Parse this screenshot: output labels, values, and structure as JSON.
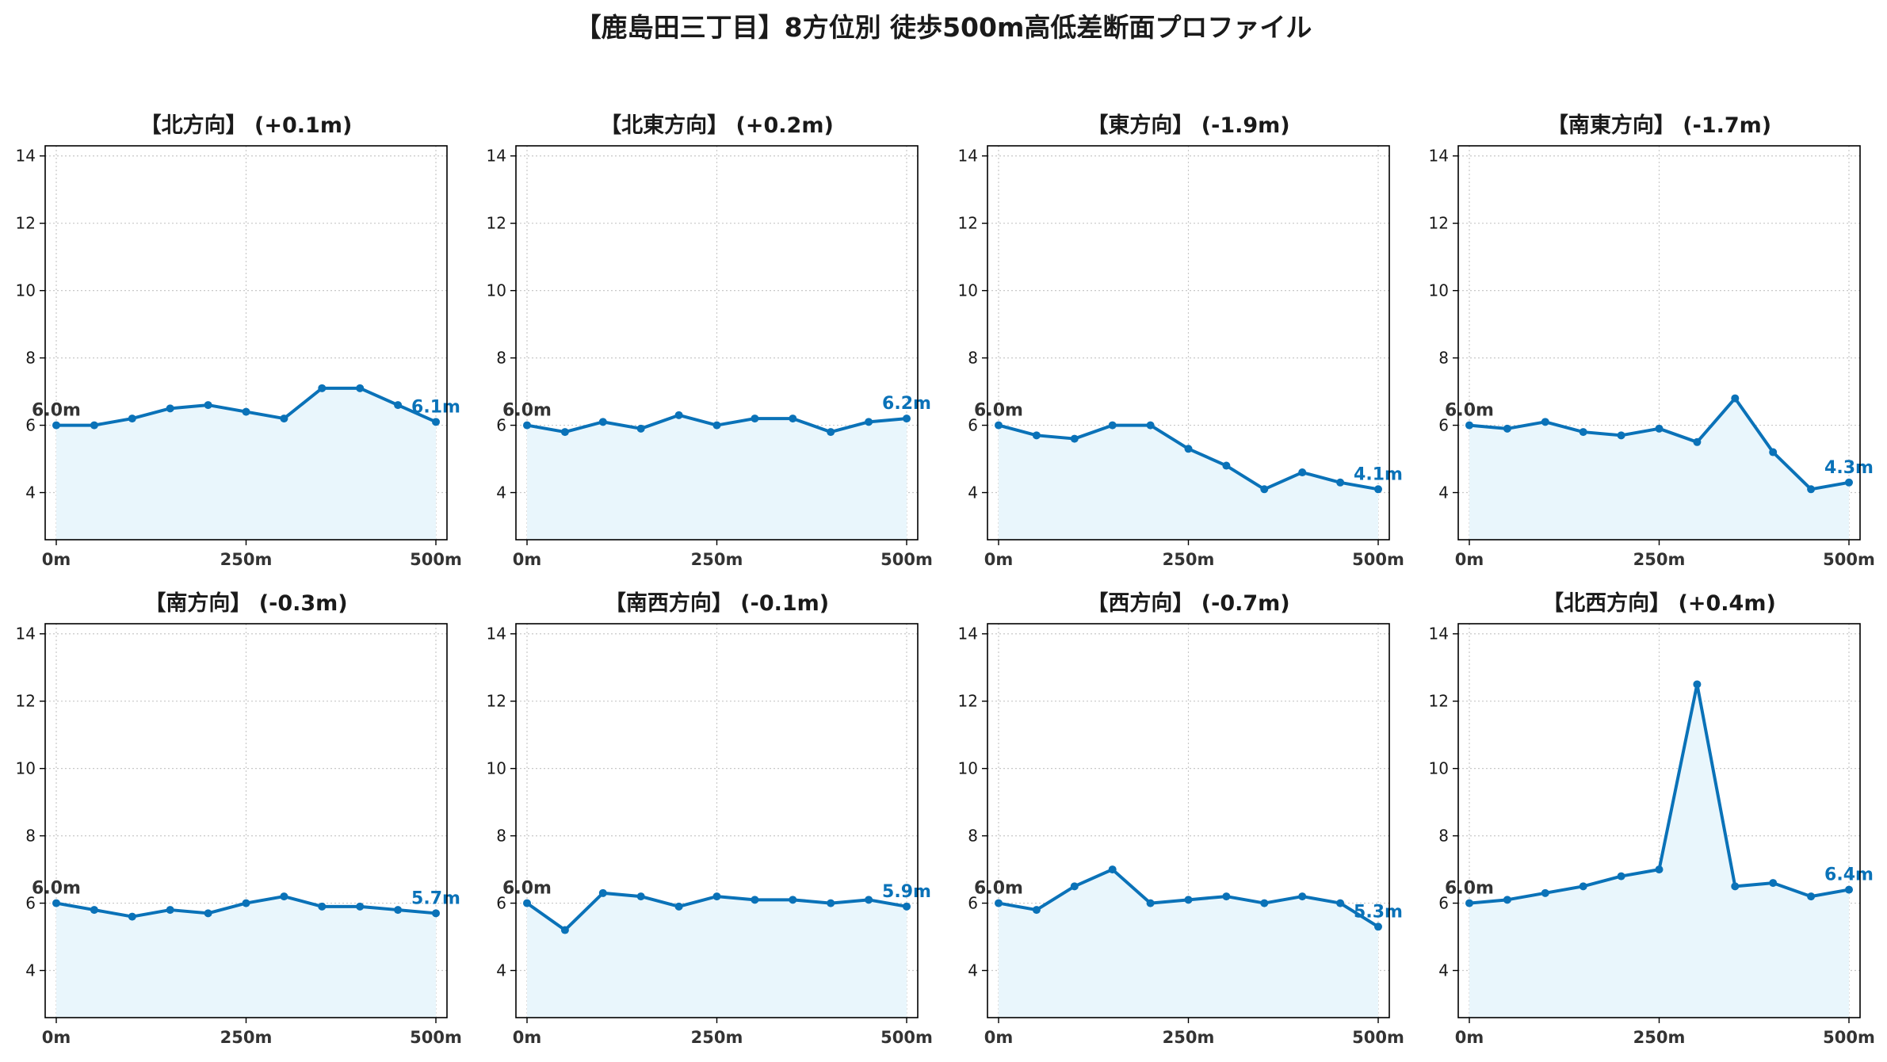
{
  "title": "【鹿島田三丁目】8方位別 徒歩500m高低差断面プロファイル",
  "colors": {
    "line": "#0a72b8",
    "fill": "#e9f6fc",
    "start_label": "#333333",
    "end_label": "#0a72b8",
    "grid": "#c8c8c8",
    "axis": "#000000"
  },
  "chart_data": [
    {
      "type": "line",
      "title": "【北方向】 (+0.1m)",
      "x": [
        0,
        50,
        100,
        150,
        200,
        250,
        300,
        350,
        400,
        450,
        500
      ],
      "y": [
        6.0,
        6.0,
        6.2,
        6.5,
        6.6,
        6.4,
        6.2,
        7.1,
        7.1,
        6.6,
        6.1
      ],
      "start_label": "6.0m",
      "end_label": "6.1m",
      "ylim": [
        2.6,
        14.3
      ],
      "yticks": [
        4,
        6,
        8,
        10,
        12,
        14
      ],
      "xticks": [
        0,
        250,
        500
      ],
      "xticklabels": [
        "0m",
        "250m",
        "500m"
      ],
      "grid": true
    },
    {
      "type": "line",
      "title": "【北東方向】 (+0.2m)",
      "x": [
        0,
        50,
        100,
        150,
        200,
        250,
        300,
        350,
        400,
        450,
        500
      ],
      "y": [
        6.0,
        5.8,
        6.1,
        5.9,
        6.3,
        6.0,
        6.2,
        6.2,
        5.8,
        6.1,
        6.2
      ],
      "start_label": "6.0m",
      "end_label": "6.2m",
      "ylim": [
        2.6,
        14.3
      ],
      "yticks": [
        4,
        6,
        8,
        10,
        12,
        14
      ],
      "xticks": [
        0,
        250,
        500
      ],
      "xticklabels": [
        "0m",
        "250m",
        "500m"
      ],
      "grid": true
    },
    {
      "type": "line",
      "title": "【東方向】 (-1.9m)",
      "x": [
        0,
        50,
        100,
        150,
        200,
        250,
        300,
        350,
        400,
        450,
        500
      ],
      "y": [
        6.0,
        5.7,
        5.6,
        6.0,
        6.0,
        5.3,
        4.8,
        4.1,
        4.6,
        4.3,
        4.1
      ],
      "start_label": "6.0m",
      "end_label": "4.1m",
      "ylim": [
        2.6,
        14.3
      ],
      "yticks": [
        4,
        6,
        8,
        10,
        12,
        14
      ],
      "xticks": [
        0,
        250,
        500
      ],
      "xticklabels": [
        "0m",
        "250m",
        "500m"
      ],
      "grid": true
    },
    {
      "type": "line",
      "title": "【南東方向】 (-1.7m)",
      "x": [
        0,
        50,
        100,
        150,
        200,
        250,
        300,
        350,
        400,
        450,
        500
      ],
      "y": [
        6.0,
        5.9,
        6.1,
        5.8,
        5.7,
        5.9,
        5.5,
        6.8,
        5.2,
        4.1,
        4.3
      ],
      "start_label": "6.0m",
      "end_label": "4.3m",
      "ylim": [
        2.6,
        14.3
      ],
      "yticks": [
        4,
        6,
        8,
        10,
        12,
        14
      ],
      "xticks": [
        0,
        250,
        500
      ],
      "xticklabels": [
        "0m",
        "250m",
        "500m"
      ],
      "grid": true
    },
    {
      "type": "line",
      "title": "【南方向】 (-0.3m)",
      "x": [
        0,
        50,
        100,
        150,
        200,
        250,
        300,
        350,
        400,
        450,
        500
      ],
      "y": [
        6.0,
        5.8,
        5.6,
        5.8,
        5.7,
        6.0,
        6.2,
        5.9,
        5.9,
        5.8,
        5.7
      ],
      "start_label": "6.0m",
      "end_label": "5.7m",
      "ylim": [
        2.6,
        14.3
      ],
      "yticks": [
        4,
        6,
        8,
        10,
        12,
        14
      ],
      "xticks": [
        0,
        250,
        500
      ],
      "xticklabels": [
        "0m",
        "250m",
        "500m"
      ],
      "grid": true
    },
    {
      "type": "line",
      "title": "【南西方向】 (-0.1m)",
      "x": [
        0,
        50,
        100,
        150,
        200,
        250,
        300,
        350,
        400,
        450,
        500
      ],
      "y": [
        6.0,
        5.2,
        6.3,
        6.2,
        5.9,
        6.2,
        6.1,
        6.1,
        6.0,
        6.1,
        5.9
      ],
      "start_label": "6.0m",
      "end_label": "5.9m",
      "ylim": [
        2.6,
        14.3
      ],
      "yticks": [
        4,
        6,
        8,
        10,
        12,
        14
      ],
      "xticks": [
        0,
        250,
        500
      ],
      "xticklabels": [
        "0m",
        "250m",
        "500m"
      ],
      "grid": true
    },
    {
      "type": "line",
      "title": "【西方向】 (-0.7m)",
      "x": [
        0,
        50,
        100,
        150,
        200,
        250,
        300,
        350,
        400,
        450,
        500
      ],
      "y": [
        6.0,
        5.8,
        6.5,
        7.0,
        6.0,
        6.1,
        6.2,
        6.0,
        6.2,
        6.0,
        5.3
      ],
      "start_label": "6.0m",
      "end_label": "5.3m",
      "ylim": [
        2.6,
        14.3
      ],
      "yticks": [
        4,
        6,
        8,
        10,
        12,
        14
      ],
      "xticks": [
        0,
        250,
        500
      ],
      "xticklabels": [
        "0m",
        "250m",
        "500m"
      ],
      "grid": true
    },
    {
      "type": "line",
      "title": "【北西方向】 (+0.4m)",
      "x": [
        0,
        50,
        100,
        150,
        200,
        250,
        300,
        350,
        400,
        450,
        500
      ],
      "y": [
        6.0,
        6.1,
        6.3,
        6.5,
        6.8,
        7.0,
        12.5,
        6.5,
        6.6,
        6.2,
        6.4
      ],
      "start_label": "6.0m",
      "end_label": "6.4m",
      "ylim": [
        2.6,
        14.3
      ],
      "yticks": [
        4,
        6,
        8,
        10,
        12,
        14
      ],
      "xticks": [
        0,
        250,
        500
      ],
      "xticklabels": [
        "0m",
        "250m",
        "500m"
      ],
      "grid": true
    }
  ]
}
